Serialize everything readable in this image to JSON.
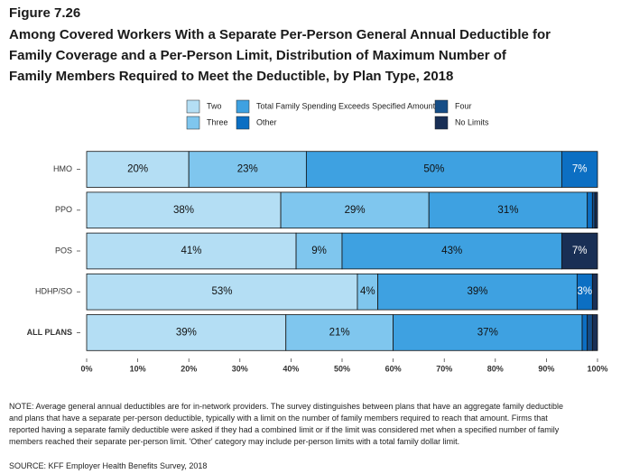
{
  "figure_label": "Figure 7.26",
  "chart_data": {
    "type": "stacked-bar-horizontal",
    "title": "Among Covered Workers With a Separate Per-Person General Annual Deductible for Family Coverage and a Per-Person Limit, Distribution of Maximum Number of Family Members Required to Meet the Deductible, by Plan Type, 2018",
    "categories": [
      "HMO",
      "PPO",
      "POS",
      "HDHP/SO",
      "ALL PLANS"
    ],
    "series": [
      {
        "name": "Two",
        "color": "#b4def4",
        "values": [
          20,
          38,
          41,
          53,
          39
        ],
        "value_labels": [
          "20%",
          "38%",
          "41%",
          "53%",
          "39%"
        ]
      },
      {
        "name": "Three",
        "color": "#7fc6ee",
        "values": [
          23,
          29,
          9,
          4,
          21
        ],
        "value_labels": [
          "23%",
          "29%",
          "9%",
          "4%",
          "21%"
        ]
      },
      {
        "name": "Total Family Spending Exceeds Specified Amount",
        "color": "#3ea1e1",
        "values": [
          50,
          31,
          43,
          39,
          37
        ],
        "value_labels": [
          "50%",
          "31%",
          "43%",
          "39%",
          "37%"
        ]
      },
      {
        "name": "Other",
        "color": "#0c6fc3",
        "values": [
          7,
          1,
          0,
          3,
          1
        ],
        "value_labels": [
          "7%",
          null,
          null,
          "3%",
          null
        ]
      },
      {
        "name": "Four",
        "color": "#164d86",
        "values": [
          0,
          0.5,
          0,
          0,
          1
        ],
        "value_labels": [
          null,
          null,
          null,
          null,
          null
        ]
      },
      {
        "name": "No Limits",
        "color": "#192f55",
        "values": [
          0,
          0.5,
          7,
          1,
          1
        ],
        "value_labels": [
          null,
          null,
          "7%",
          null,
          null
        ]
      }
    ],
    "xlim": [
      0,
      100
    ],
    "xticks": [
      {
        "value": 0,
        "label": "0%"
      },
      {
        "value": 10,
        "label": "10%"
      },
      {
        "value": 20,
        "label": "20%"
      },
      {
        "value": 30,
        "label": "30%"
      },
      {
        "value": 40,
        "label": "40%"
      },
      {
        "value": 50,
        "label": "50%"
      },
      {
        "value": 60,
        "label": "60%"
      },
      {
        "value": 70,
        "label": "70%"
      },
      {
        "value": 80,
        "label": "80%"
      },
      {
        "value": 90,
        "label": "90%"
      },
      {
        "value": 100,
        "label": "100%"
      }
    ]
  },
  "note": "NOTE: Average general annual deductibles are for in-network providers. The survey distinguishes between plans that have an aggregate family deductible and plans that have a separate per-person deductible, typically with a limit on the number of family members required to reach that amount. Firms that reported having a separate family deductible were asked if they had a combined limit or if the limit was considered met when a specified number of family members reached their separate per-person limit. 'Other' category may include per-person limits with a total family dollar limit.",
  "source": "SOURCE: KFF Employer Health Benefits Survey, 2018"
}
